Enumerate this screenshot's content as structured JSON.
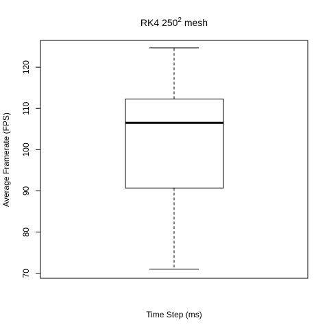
{
  "chart_data": {
    "type": "box",
    "title": {
      "prefix": "RK4  250",
      "superscript": "2",
      "suffix": "  mesh"
    },
    "xlabel": "Time Step (ms)",
    "ylabel": "Average Framerate (FPS)",
    "ylim": [
      68.8,
      126.5
    ],
    "yticks": [
      70,
      80,
      90,
      100,
      110,
      120
    ],
    "box": {
      "whisker_low": 71.0,
      "q1": 90.7,
      "median": 106.5,
      "q3": 112.3,
      "whisker_high": 124.7
    },
    "colors": {
      "foreground": "#000000",
      "background": "#ffffff"
    }
  }
}
